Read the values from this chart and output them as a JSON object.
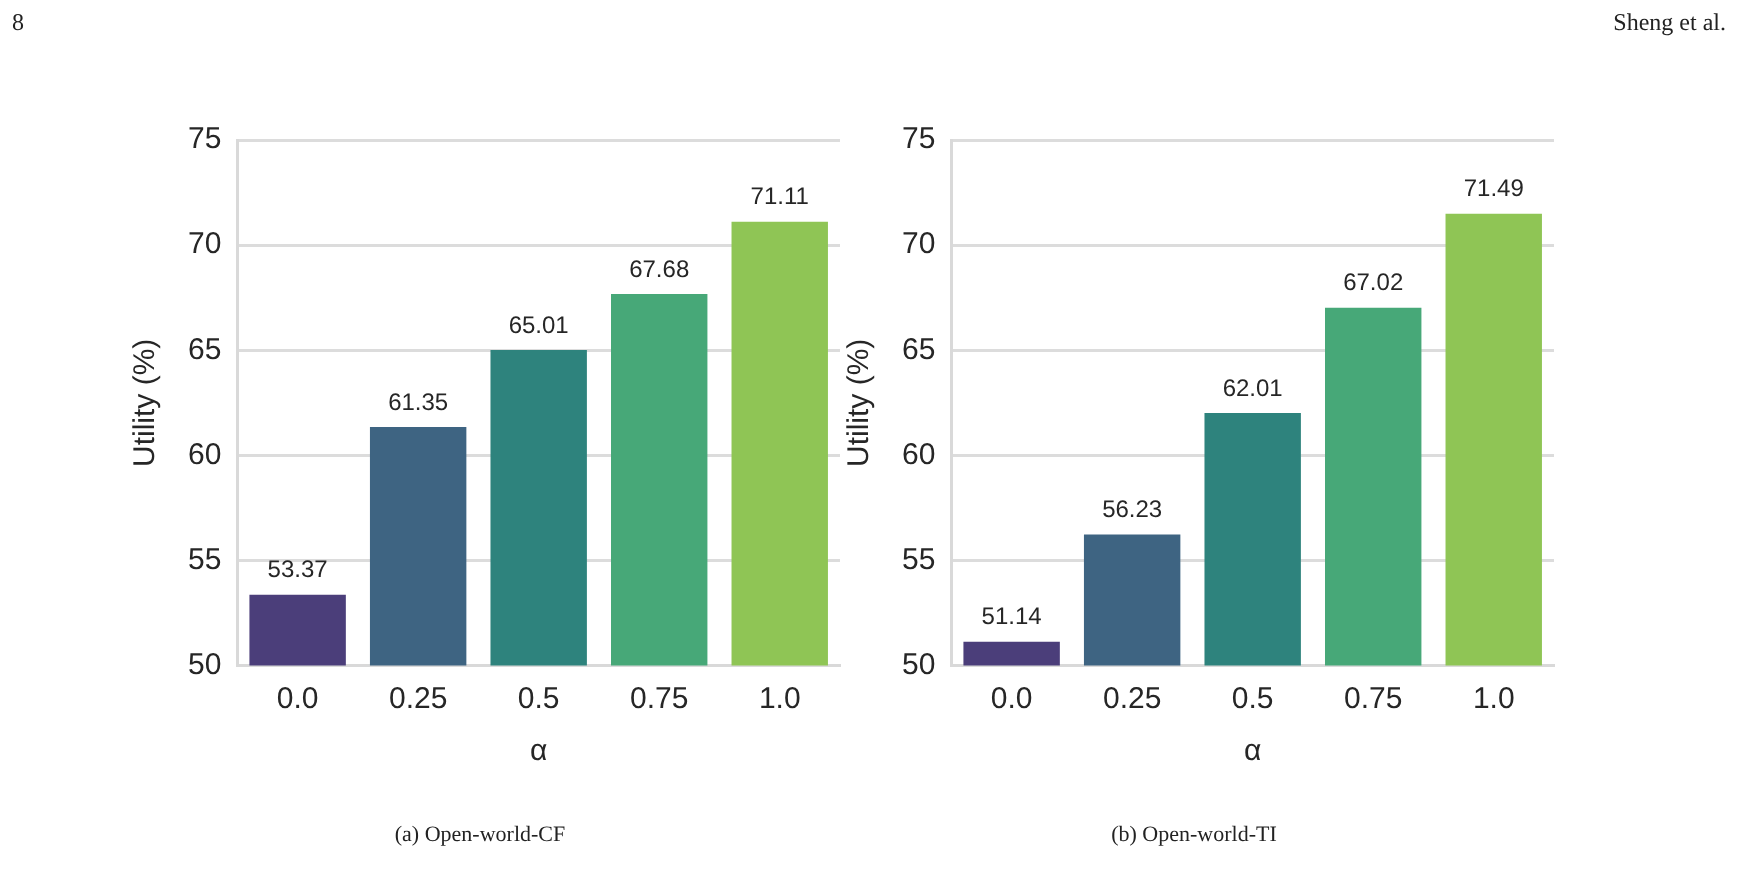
{
  "chart_data": [
    {
      "type": "bar",
      "title": "(a) Open-world-CF",
      "xlabel": "α",
      "ylabel": "Utility (%)",
      "annotations": [
        "8"
      ],
      "categories": [
        "0.0",
        "0.25",
        "0.5",
        "0.75",
        "1.0"
      ],
      "values": [
        53.37,
        61.35,
        65.01,
        67.68,
        71.11
      ],
      "colors": [
        "#4b3e7a",
        "#3e6482",
        "#2e837d",
        "#47a878",
        "#8fc555"
      ],
      "ylim": [
        50,
        75
      ],
      "yticks": [
        50,
        55,
        60,
        65,
        70,
        75
      ],
      "grid": "y",
      "data_labels": true
    },
    {
      "type": "bar",
      "title": "(b) Open-world-TI",
      "xlabel": "α",
      "ylabel": "Utility (%)",
      "annotations": [
        "Sheng et al."
      ],
      "categories": [
        "0.0",
        "0.25",
        "0.5",
        "0.75",
        "1.0"
      ],
      "values": [
        51.14,
        56.23,
        62.01,
        67.02,
        71.49
      ],
      "colors": [
        "#4b3e7a",
        "#3e6482",
        "#2e837d",
        "#47a878",
        "#8fc555"
      ],
      "ylim": [
        50,
        75
      ],
      "yticks": [
        50,
        55,
        60,
        65,
        70,
        75
      ],
      "grid": "y",
      "data_labels": true
    }
  ]
}
